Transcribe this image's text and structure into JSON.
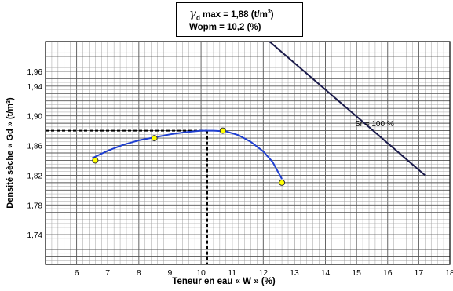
{
  "info_box": {
    "gamma_symbol": "γ",
    "gamma_sub": "d",
    "gamma_text": " max  =  1,88  (t/m",
    "gamma_exp": "3",
    "gamma_close": ")",
    "w_text": "Wopm  =  10,2  (%)"
  },
  "chart_data": {
    "type": "line",
    "title": "",
    "xlabel": "Teneur en eau « W » (%)",
    "ylabel_prefix": "Densité sèche « Gd » (t/m",
    "ylabel_exp": "3",
    "ylabel_suffix": ")",
    "xlim": [
      5,
      18
    ],
    "ylim": [
      1.7,
      2.0
    ],
    "x_ticks": [
      6,
      7,
      8,
      9,
      10,
      11,
      12,
      13,
      14,
      15,
      16,
      17,
      18
    ],
    "x_tick_labels": [
      "6",
      "7",
      "8",
      "9",
      "10",
      "11",
      "12",
      "13",
      "14",
      "15",
      "16",
      "17",
      "18"
    ],
    "y_ticks": [
      1.74,
      1.78,
      1.82,
      1.86,
      1.9,
      1.94,
      1.96
    ],
    "y_tick_labels": [
      "1,74",
      "1,78",
      "1,82",
      "1,86",
      "1,90",
      "1,94",
      "1,96"
    ],
    "grid": true,
    "series": [
      {
        "kind": "points",
        "color": "#ffff00",
        "x": [
          6.6,
          8.5,
          10.7,
          12.6
        ],
        "y": [
          1.84,
          1.87,
          1.88,
          1.81
        ]
      },
      {
        "kind": "curve",
        "color": "#1f3fd0",
        "x": [
          6.5,
          7.0,
          7.5,
          8.0,
          8.5,
          9.0,
          9.5,
          10.0,
          10.4,
          10.8,
          11.2,
          11.6,
          12.0,
          12.3,
          12.6
        ],
        "y": [
          1.843,
          1.853,
          1.861,
          1.867,
          1.871,
          1.875,
          1.878,
          1.88,
          1.88,
          1.879,
          1.874,
          1.865,
          1.852,
          1.838,
          1.815
        ]
      },
      {
        "kind": "saturation",
        "name": "Sr = 100 %",
        "color": "#1a1a4a",
        "x": [
          12.2,
          17.2
        ],
        "y": [
          2.0,
          1.82
        ]
      }
    ],
    "optimum": {
      "x": 10.2,
      "y": 1.88
    },
    "annotation": {
      "text": "Sr = 100 %",
      "x": 15.5,
      "y": 1.89
    }
  }
}
